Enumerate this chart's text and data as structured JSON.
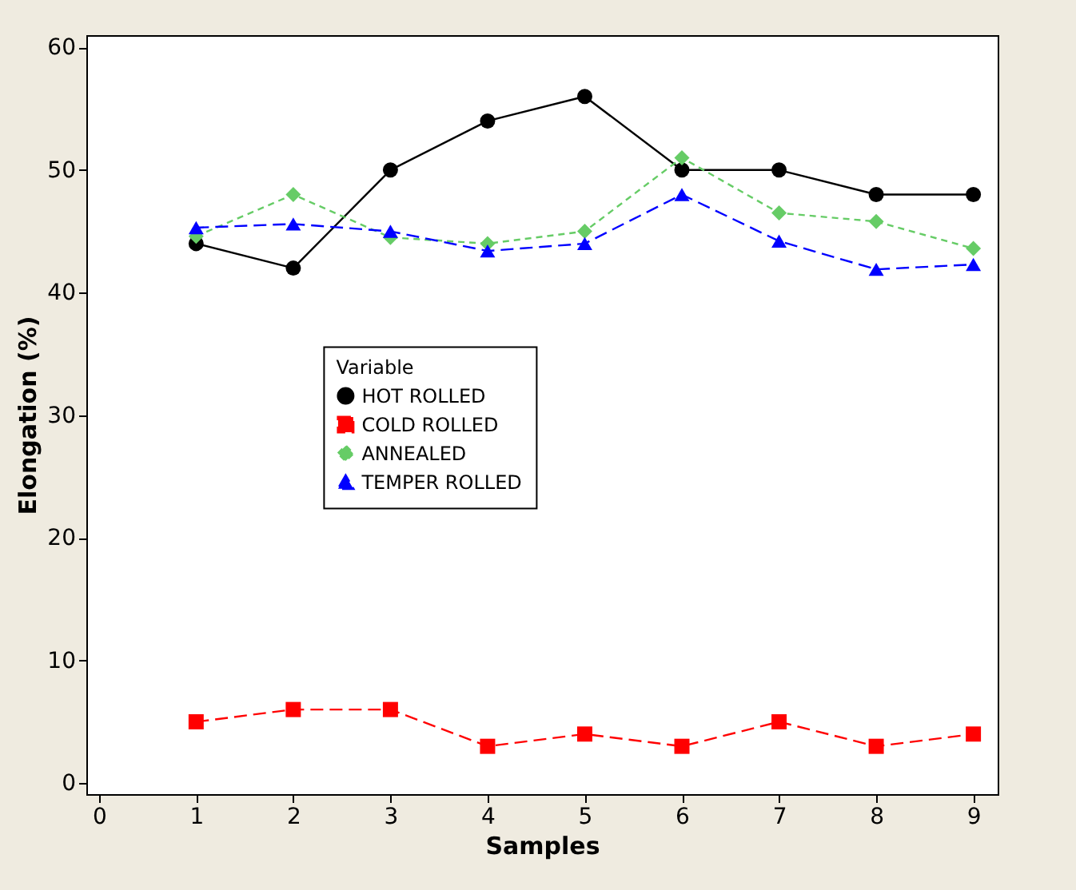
{
  "chart_data": {
    "type": "line",
    "xlabel": "Samples",
    "ylabel": "Elongation  (%)",
    "legend_title": "Variable",
    "x": [
      1,
      2,
      3,
      4,
      5,
      6,
      7,
      8,
      9
    ],
    "series": [
      {
        "name": "HOT ROLLED",
        "color": "#000000",
        "marker": "circle",
        "line_style": "solid",
        "values": [
          44,
          42,
          50,
          54,
          56,
          50,
          50,
          48,
          48
        ]
      },
      {
        "name": "COLD ROLLED",
        "color": "#ff0000",
        "marker": "square",
        "line_style": "dashed",
        "values": [
          5,
          6,
          6,
          3,
          4,
          3,
          5,
          3,
          4
        ]
      },
      {
        "name": "ANNEALED",
        "color": "#66cc66",
        "marker": "diamond",
        "line_style": "dotted",
        "values": [
          44.6,
          48,
          44.5,
          44,
          45,
          51,
          46.5,
          45.8,
          43.6
        ]
      },
      {
        "name": "TEMPER ROLLED",
        "color": "#0000ff",
        "marker": "triangle",
        "line_style": "dashed",
        "values": [
          45.3,
          45.6,
          45,
          43.4,
          44,
          48,
          44.2,
          41.9,
          42.3
        ]
      }
    ],
    "xlim": [
      -0.13,
      9.25
    ],
    "xticks": [
      0,
      1,
      2,
      3,
      4,
      5,
      6,
      7,
      8,
      9
    ],
    "ylim": [
      -0.9,
      61
    ],
    "yticks": [
      0,
      10,
      20,
      30,
      40,
      50,
      60
    ],
    "grid": false,
    "legend": "center left"
  }
}
